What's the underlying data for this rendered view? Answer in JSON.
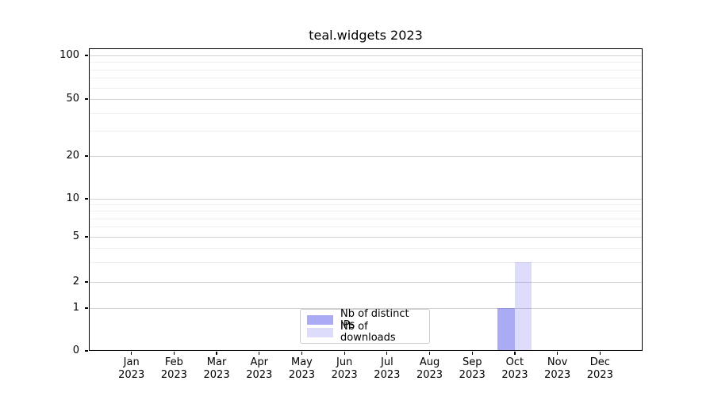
{
  "chart_data": {
    "type": "bar",
    "title": "teal.widgets 2023",
    "xlabel": "",
    "ylabel": "",
    "categories": [
      "Jan",
      "Feb",
      "Mar",
      "Apr",
      "May",
      "Jun",
      "Jul",
      "Aug",
      "Sep",
      "Oct",
      "Nov",
      "Dec"
    ],
    "category_year": "2023",
    "series": [
      {
        "name": "Nb of distinct IPs",
        "color": "#5555eb",
        "alpha": 0.5,
        "values": [
          0,
          0,
          0,
          0,
          0,
          0,
          0,
          0,
          0,
          1,
          0,
          0
        ]
      },
      {
        "name": "Nb of downloads",
        "color": "#5555eb",
        "alpha": 0.2,
        "values": [
          0,
          0,
          0,
          0,
          0,
          0,
          0,
          0,
          0,
          3,
          0,
          0
        ]
      }
    ],
    "yscale": "symlog",
    "ylim": [
      0,
      110
    ],
    "y_ticks": [
      0,
      1,
      2,
      5,
      10,
      20,
      50,
      100
    ],
    "y_minor_ticks": [
      3,
      4,
      6,
      7,
      8,
      9,
      30,
      40,
      60,
      70,
      80,
      90
    ],
    "grid": "horizontal",
    "legend_position": "lower center"
  }
}
